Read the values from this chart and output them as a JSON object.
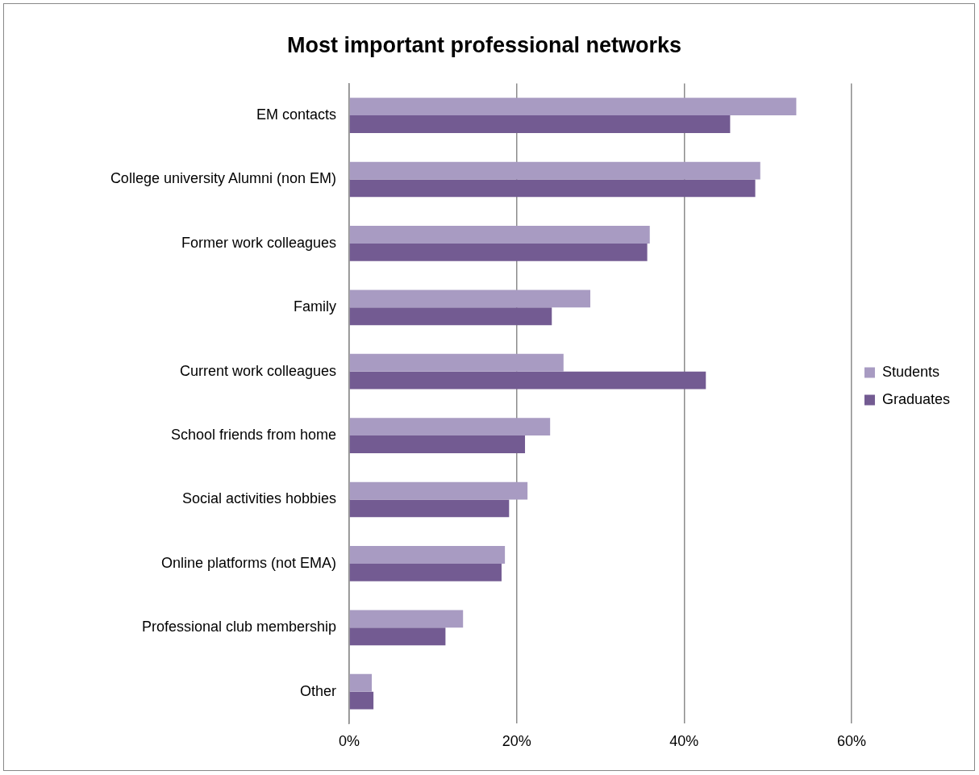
{
  "chart_data": {
    "type": "bar",
    "orientation": "horizontal",
    "title": "Most important professional networks",
    "categories": [
      "EM contacts",
      "College university Alumni (non EM)",
      "Former work colleagues",
      "Family",
      "Current work colleagues",
      "School friends from home",
      "Social activities hobbies",
      "Online platforms (not EMA)",
      "Professional club membership",
      "Other"
    ],
    "series": [
      {
        "name": "Students",
        "color": "#a89bc2",
        "values": [
          53.4,
          49.1,
          35.9,
          28.8,
          25.6,
          24.0,
          21.3,
          18.6,
          13.6,
          2.7
        ]
      },
      {
        "name": "Graduates",
        "color": "#735b92",
        "values": [
          45.5,
          48.5,
          35.6,
          24.2,
          42.6,
          21.0,
          19.1,
          18.2,
          11.5,
          2.9
        ]
      }
    ],
    "xlim": [
      0,
      60
    ],
    "xticks": [
      {
        "value": 0,
        "label": "0%"
      },
      {
        "value": 20,
        "label": "20%"
      },
      {
        "value": 40,
        "label": "40%"
      },
      {
        "value": 60,
        "label": "60%"
      }
    ],
    "grid": "x",
    "legend": "right"
  }
}
